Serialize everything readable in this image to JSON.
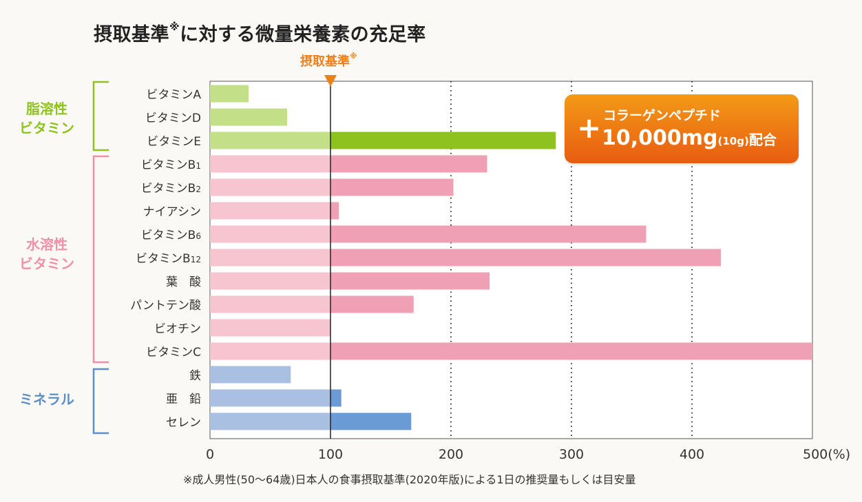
{
  "title": {
    "main": "摂取基準",
    "note": "※",
    "rest": "に対する微量栄養素の充足率"
  },
  "reference": {
    "label": "摂取基準",
    "note": "※",
    "value": 100
  },
  "callout": {
    "plus": "+",
    "line1": "コラーゲンペプチド",
    "amount": "10,000mg",
    "unit": "(10g)",
    "suffix": "配合"
  },
  "groups": [
    {
      "label_line1": "脂溶性",
      "label_line2": "ビタミン",
      "color": "#8dc21f"
    },
    {
      "label_line1": "水溶性",
      "label_line2": "ビタミン",
      "color": "#ef8fa8"
    },
    {
      "label_line1": "ミネラル",
      "label_line2": "",
      "color": "#5b8fca"
    }
  ],
  "footnote": "※成人男性(50〜64歳)日本人の食事摂取基準(2020年版)による1日の推奨量もしくは目安量",
  "colors": {
    "fat_light": "#c3df88",
    "fat_dark": "#8dc21f",
    "water_light": "#f7c5d0",
    "water_dark": "#f0a0b4",
    "mineral_light": "#aac0e3",
    "mineral_dark": "#6a9bd5",
    "reference_marker": "#ef7f1a"
  },
  "chart_data": {
    "type": "bar",
    "orientation": "horizontal",
    "title": "摂取基準※に対する微量栄養素の充足率",
    "xlim": [
      0,
      500
    ],
    "xticks": [
      0,
      100,
      200,
      300,
      400,
      500
    ],
    "xtick_labels": [
      "0",
      "100",
      "200",
      "300",
      "400",
      "500(%)"
    ],
    "reference_line": 100,
    "categories": [
      {
        "name": "ビタミンA",
        "group": "fat",
        "value": 32
      },
      {
        "name": "ビタミンD",
        "group": "fat",
        "value": 64
      },
      {
        "name": "ビタミンE",
        "group": "fat",
        "value": 287
      },
      {
        "name": "ビタミンB1",
        "group": "water",
        "value": 230
      },
      {
        "name": "ビタミンB2",
        "group": "water",
        "value": 202
      },
      {
        "name": "ナイアシン",
        "group": "water",
        "value": 107
      },
      {
        "name": "ビタミンB6",
        "group": "water",
        "value": 362
      },
      {
        "name": "ビタミンB12",
        "group": "water",
        "value": 424
      },
      {
        "name": "葉　酸",
        "group": "water",
        "value": 232
      },
      {
        "name": "パントテン酸",
        "group": "water",
        "value": 169
      },
      {
        "name": "ビオチン",
        "group": "water",
        "value": 100
      },
      {
        "name": "ビタミンC",
        "group": "water",
        "value": 500
      },
      {
        "name": "鉄",
        "group": "mineral",
        "value": 67
      },
      {
        "name": "亜　鉛",
        "group": "mineral",
        "value": 109
      },
      {
        "name": "セレン",
        "group": "mineral",
        "value": 167
      }
    ],
    "grid": "dotted vertical at 200, 300, 400"
  }
}
